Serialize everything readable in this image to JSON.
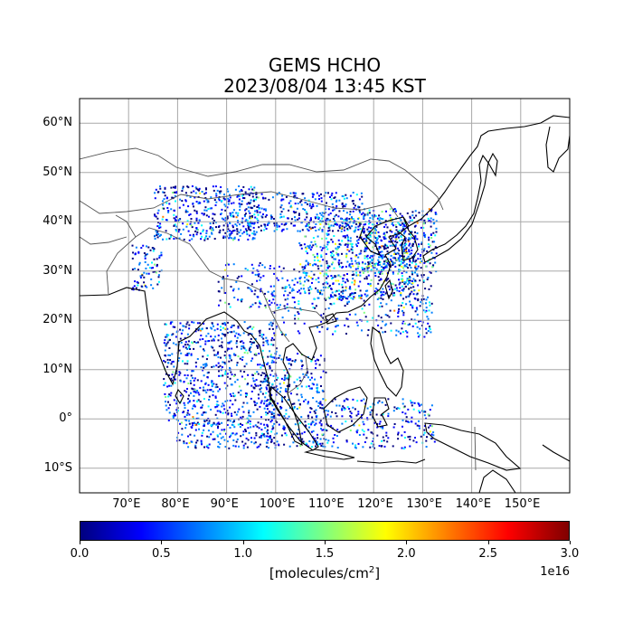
{
  "title": {
    "line1": "GEMS HCHO",
    "line2": "2023/08/04 13:45 KST"
  },
  "map": {
    "lon_range": [
      60,
      160
    ],
    "lat_range": [
      -15,
      65
    ],
    "lon_ticks": [
      "70°E",
      "80°E",
      "90°E",
      "100°E",
      "110°E",
      "120°E",
      "130°E",
      "140°E",
      "150°E"
    ],
    "lat_ticks": [
      "60°N",
      "50°N",
      "40°N",
      "30°N",
      "20°N",
      "10°N",
      "0°",
      "10°S"
    ],
    "grid": true
  },
  "colorbar": {
    "colormap": "jet",
    "range": [
      0.0,
      3.0
    ],
    "ticks": [
      "0.0",
      "0.5",
      "1.0",
      "1.5",
      "2.0",
      "2.5",
      "3.0"
    ],
    "label": "[molecules/cm",
    "label_sup": "2",
    "label_end": "]",
    "exponent": "1e16",
    "colors": [
      "#00007f",
      "#0000ff",
      "#007fff",
      "#00ffff",
      "#7fff7f",
      "#ffff00",
      "#ff7f00",
      "#ff0000",
      "#7f0000"
    ]
  }
}
